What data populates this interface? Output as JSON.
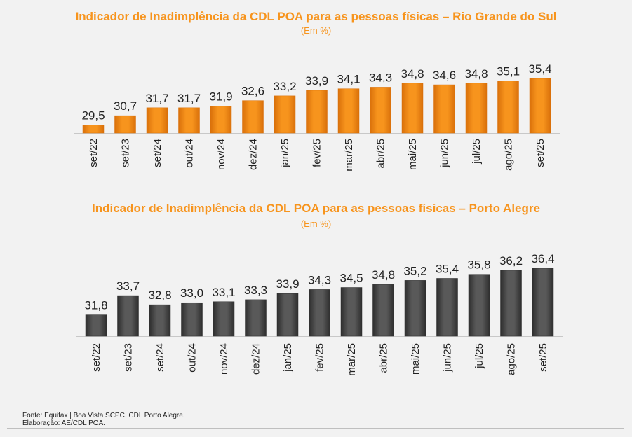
{
  "footer": {
    "source": "Fonte: Equifax | Boa Vista SCPC. CDL Porto Alegre.",
    "elaboration": "Elaboração: AE/CDL POA."
  },
  "chart_data": [
    {
      "type": "bar",
      "title": "Indicador de Inadimplência da CDL POA para as pessoas físicas – Rio Grande do Sul",
      "subtitle": "(Em %)",
      "categories": [
        "set/22",
        "set/23",
        "set/24",
        "out/24",
        "nov/24",
        "dez/24",
        "jan/25",
        "fev/25",
        "mar/25",
        "abr/25",
        "mai/25",
        "jun/25",
        "jul/25",
        "ago/25",
        "set/25"
      ],
      "values": [
        29.5,
        30.7,
        31.7,
        31.7,
        31.9,
        32.6,
        33.2,
        33.9,
        34.1,
        34.3,
        34.8,
        34.6,
        34.8,
        35.1,
        35.4
      ],
      "labels": [
        "29,5",
        "30,7",
        "31,7",
        "31,7",
        "31,9",
        "32,6",
        "33,2",
        "33,9",
        "34,1",
        "34,3",
        "34,8",
        "34,6",
        "34,8",
        "35,1",
        "35,4"
      ],
      "color": "#f7941d",
      "color_dark": "#d9700a",
      "ylim": [
        28.5,
        35.4
      ],
      "grid": false,
      "legend": "none"
    },
    {
      "type": "bar",
      "title": "Indicador de Inadimplência da CDL POA para as pessoas físicas – Porto Alegre",
      "subtitle": "(Em %)",
      "categories": [
        "set/22",
        "set/23",
        "set/24",
        "out/24",
        "nov/24",
        "dez/24",
        "jan/25",
        "fev/25",
        "mar/25",
        "abr/25",
        "mai/25",
        "jun/25",
        "jul/25",
        "ago/25",
        "set/25"
      ],
      "values": [
        31.8,
        33.7,
        32.8,
        33.0,
        33.1,
        33.3,
        33.9,
        34.3,
        34.5,
        34.8,
        35.2,
        35.4,
        35.8,
        36.2,
        36.4
      ],
      "labels": [
        "31,8",
        "33,7",
        "32,8",
        "33,0",
        "33,1",
        "33,3",
        "33,9",
        "34,3",
        "34,5",
        "34,8",
        "35,2",
        "35,4",
        "35,8",
        "36,2",
        "36,4"
      ],
      "color": "#595959",
      "color_dark": "#2e2e2e",
      "ylim": [
        29.7,
        36.4
      ],
      "grid": false,
      "legend": "none"
    }
  ]
}
